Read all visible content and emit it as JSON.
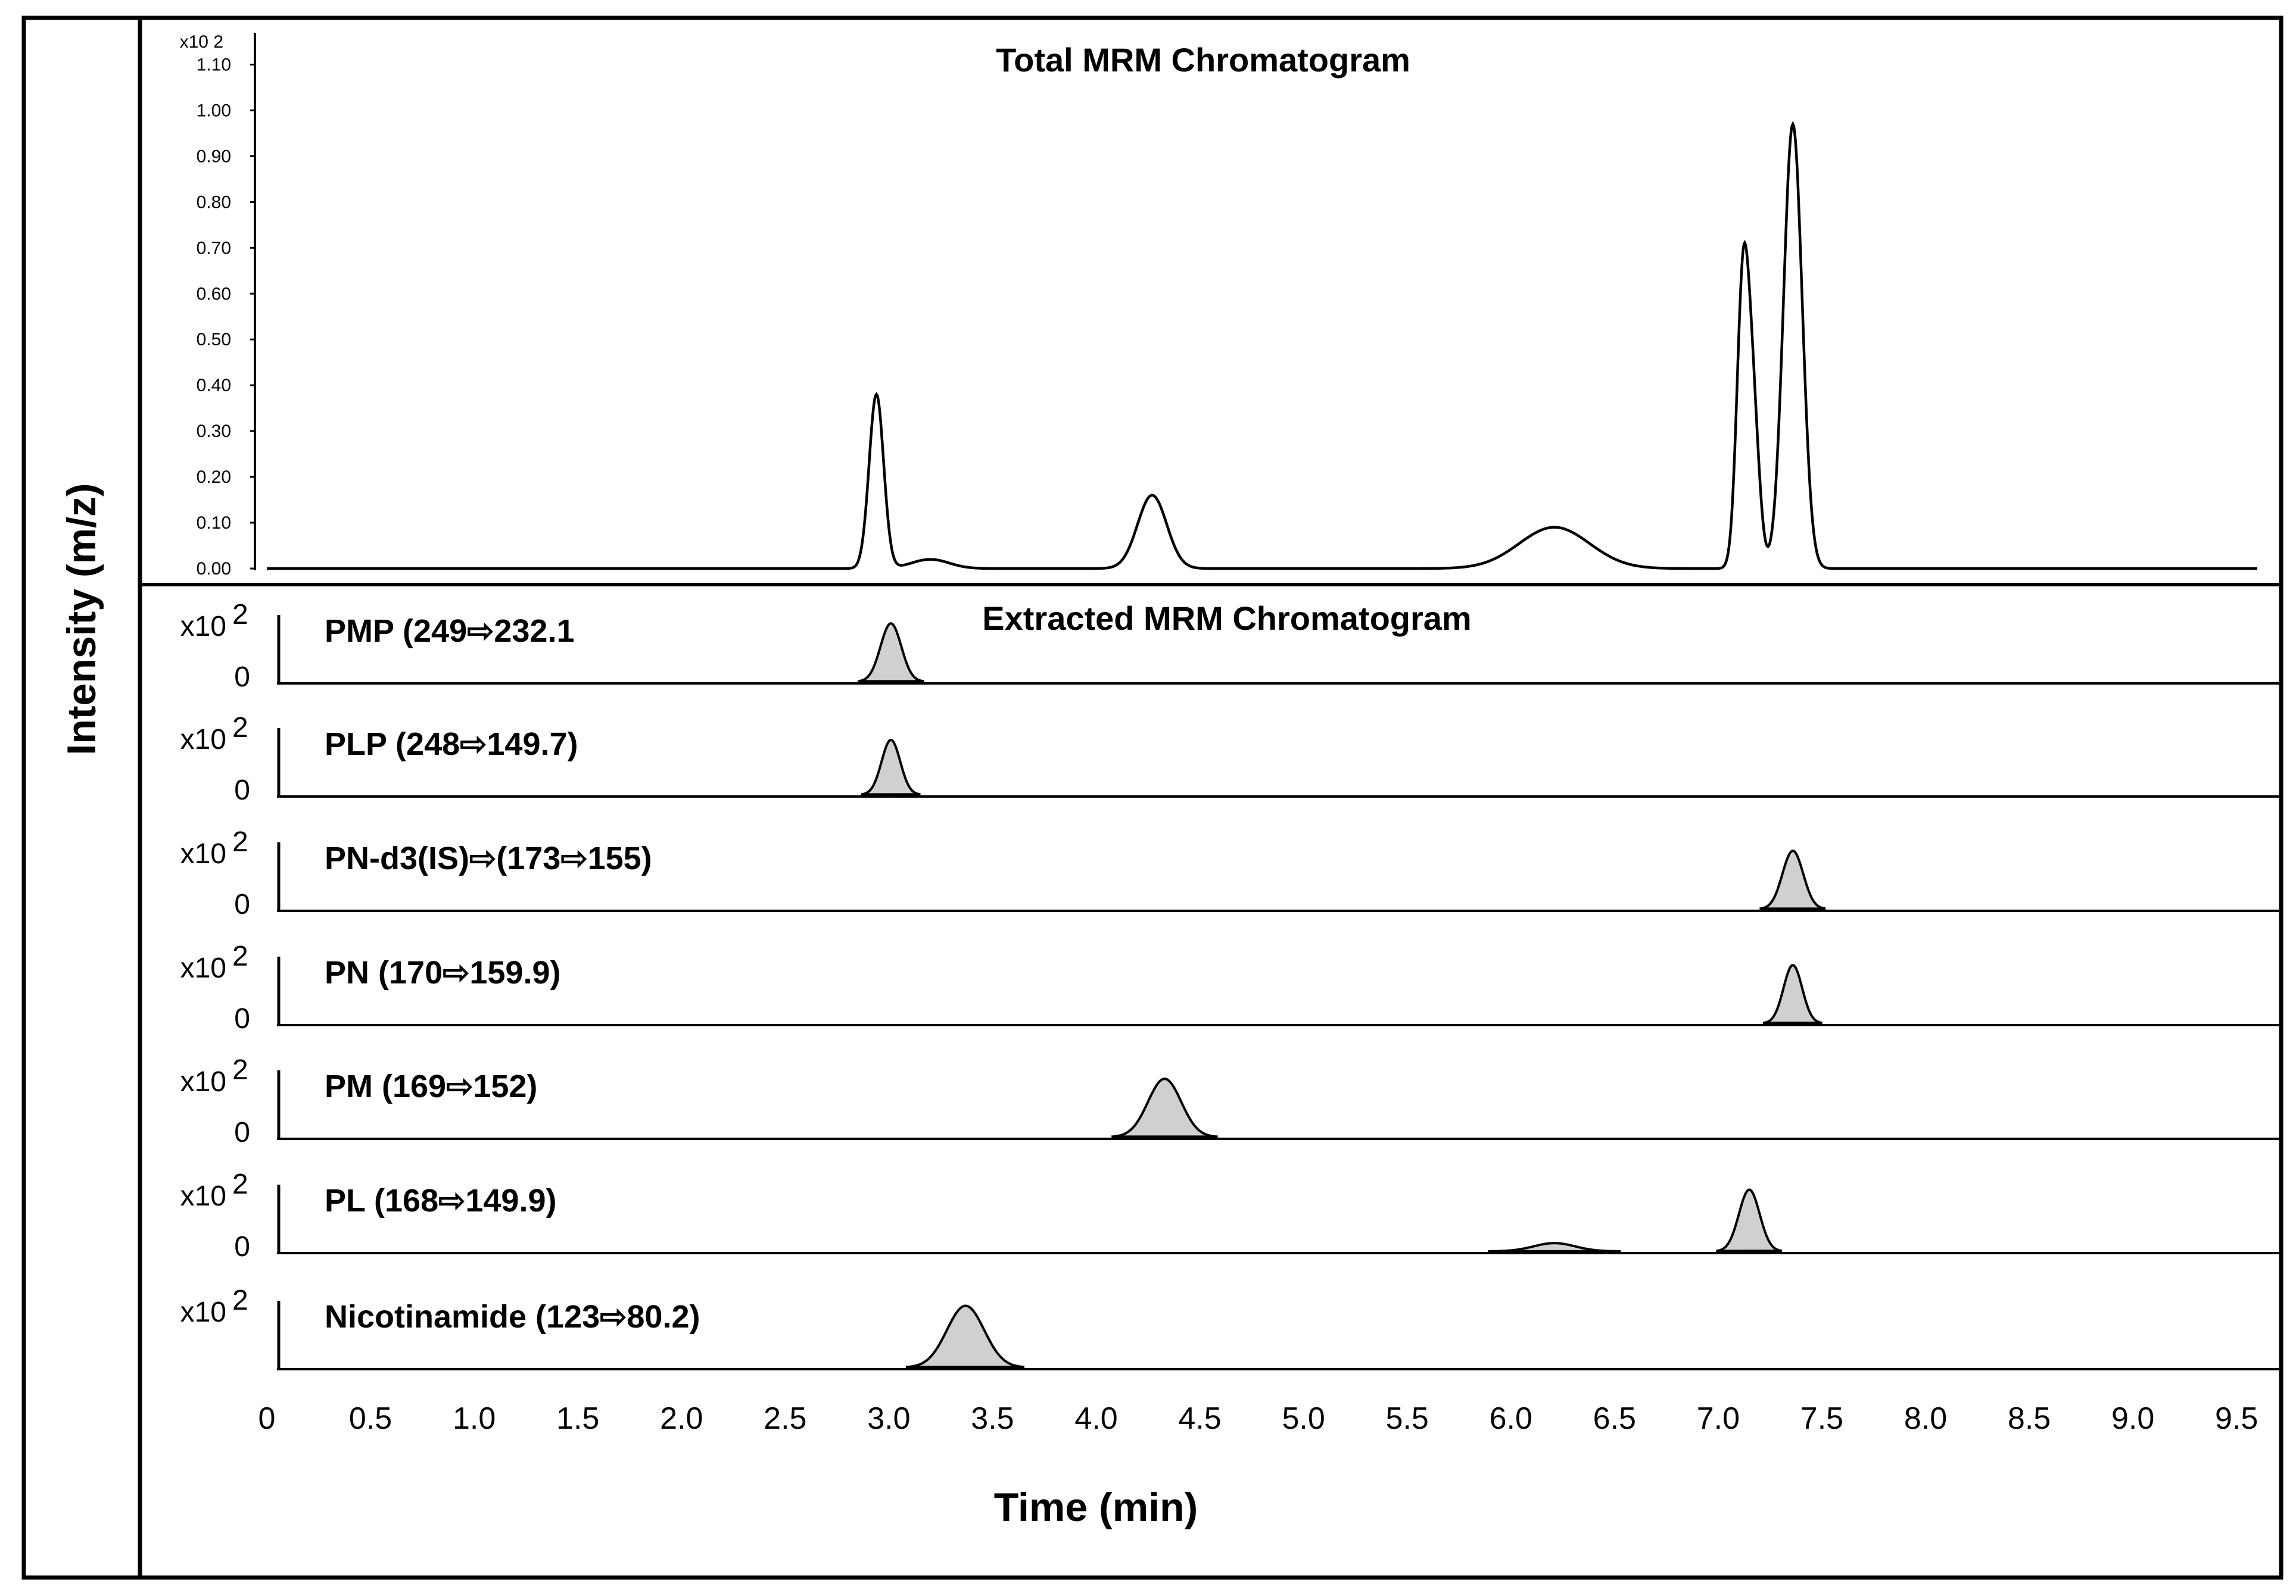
{
  "chart_data": {
    "type": "line",
    "ylabel": "Intensity (m/z)",
    "xlabel": "Time (min)",
    "xlim": [
      0,
      9.6
    ],
    "x_ticks": [
      "0",
      "0.5",
      "1.0",
      "1.5",
      "2.0",
      "2.5",
      "3.0",
      "3.5",
      "4.0",
      "4.5",
      "5.0",
      "5.5",
      "6.0",
      "6.5",
      "7.0",
      "7.5",
      "8.0",
      "8.5",
      "9.0",
      "9.5"
    ],
    "total": {
      "title": "Total MRM Chromatogram",
      "scale_label": "x10 2",
      "ylim": [
        0,
        1.15
      ],
      "y_ticks": [
        "0.00",
        "0.10",
        "0.20",
        "0.30",
        "0.40",
        "0.50",
        "0.60",
        "0.70",
        "0.80",
        "0.90",
        "1.00",
        "1.10"
      ],
      "peaks": [
        {
          "rt": 2.94,
          "height": 0.38,
          "width": 0.035
        },
        {
          "rt": 3.2,
          "height": 0.02,
          "width": 0.09
        },
        {
          "rt": 4.27,
          "height": 0.16,
          "width": 0.07
        },
        {
          "rt": 6.21,
          "height": 0.09,
          "width": 0.17
        },
        {
          "rt": 7.12,
          "height": 0.62,
          "width": 0.03
        },
        {
          "rt": 7.17,
          "height": 0.3,
          "width": 0.03
        },
        {
          "rt": 7.36,
          "height": 0.97,
          "width": 0.045
        }
      ]
    },
    "extracted": {
      "title": "Extracted MRM Chromatogram",
      "scale_label": "x10",
      "scale_exp": "2",
      "zero_label": "0",
      "traces": [
        {
          "label": "PMP (249⇨232.1",
          "peaks": [
            {
              "rt": 3.01,
              "height": 0.85,
              "width": 0.05
            }
          ]
        },
        {
          "label": "PLP (248⇨149.7)",
          "peaks": [
            {
              "rt": 3.01,
              "height": 0.8,
              "width": 0.045
            }
          ]
        },
        {
          "label": "PN-d3(IS)⇨(173⇨155)",
          "peaks": [
            {
              "rt": 7.36,
              "height": 0.85,
              "width": 0.05
            }
          ]
        },
        {
          "label": "PN (170⇨159.9)",
          "peaks": [
            {
              "rt": 7.36,
              "height": 0.85,
              "width": 0.045
            }
          ]
        },
        {
          "label": "PM (169⇨152)",
          "peaks": [
            {
              "rt": 4.33,
              "height": 0.85,
              "width": 0.08
            }
          ]
        },
        {
          "label": "PL (168⇨149.9)",
          "peaks": [
            {
              "rt": 6.21,
              "height": 0.12,
              "width": 0.1
            },
            {
              "rt": 7.15,
              "height": 0.9,
              "width": 0.05
            }
          ]
        },
        {
          "label": "Nicotinamide (123⇨80.2)",
          "peaks": [
            {
              "rt": 3.37,
              "height": 0.9,
              "width": 0.09
            }
          ],
          "no_zero": true
        }
      ]
    }
  }
}
